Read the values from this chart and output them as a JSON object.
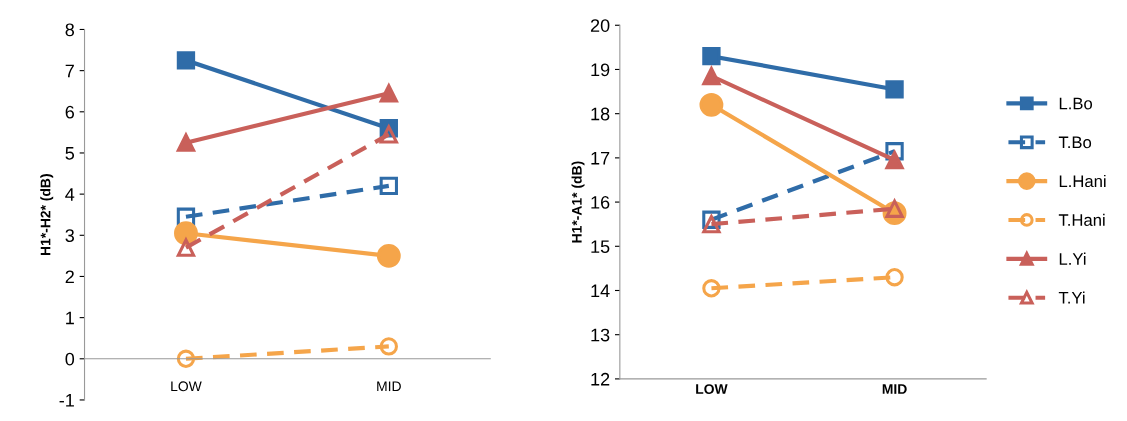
{
  "chart_data": [
    {
      "type": "line",
      "ylabel": "H1*-H2* (dB)",
      "categories": [
        "LOW",
        "MID"
      ],
      "ylim": [
        -1,
        8
      ],
      "yticks": [
        -1,
        0,
        1,
        2,
        3,
        4,
        5,
        6,
        7,
        8
      ],
      "grid": false,
      "legend": false,
      "series": [
        {
          "color": "#2f6ca8",
          "marker": "square",
          "line_style": "solid",
          "values": [
            7.25,
            5.6
          ]
        },
        {
          "color": "#2f6ca8",
          "marker": "square",
          "line_style": "dashed",
          "values": [
            3.45,
            4.2
          ]
        },
        {
          "color": "#f5a54a",
          "marker": "circle",
          "line_style": "solid",
          "values": [
            3.05,
            2.5
          ]
        },
        {
          "color": "#f5a54a",
          "marker": "circle",
          "line_style": "dashed",
          "values": [
            0,
            0.3
          ]
        },
        {
          "color": "#c9605a",
          "marker": "triangle",
          "line_style": "solid",
          "values": [
            5.25,
            6.45
          ]
        },
        {
          "color": "#c9605a",
          "marker": "triangle",
          "line_style": "dashed",
          "values": [
            2.7,
            5.45
          ]
        }
      ]
    },
    {
      "type": "line",
      "ylabel": "H1*-A1* (dB)",
      "categories": [
        "LOW",
        "MID"
      ],
      "ylim": [
        12,
        20
      ],
      "yticks": [
        12,
        13,
        14,
        15,
        16,
        17,
        18,
        19,
        20
      ],
      "grid": false,
      "legend": "right",
      "series": [
        {
          "name": "L.Bo",
          "color": "#2f6ca8",
          "marker": "square",
          "line_style": "solid",
          "values": [
            19.3,
            18.55
          ]
        },
        {
          "name": "T.Bo",
          "color": "#2f6ca8",
          "marker": "square",
          "line_style": "dashed",
          "values": [
            15.6,
            17.15
          ]
        },
        {
          "name": "L.Hani",
          "color": "#f5a54a",
          "marker": "circle",
          "line_style": "solid",
          "values": [
            18.2,
            15.75
          ]
        },
        {
          "name": "T.Hani",
          "color": "#f5a54a",
          "marker": "circle",
          "line_style": "dashed",
          "values": [
            14.05,
            14.3
          ]
        },
        {
          "name": "L.Yi",
          "color": "#c9605a",
          "marker": "triangle",
          "line_style": "solid",
          "values": [
            18.85,
            16.95
          ]
        },
        {
          "name": "T.Yi",
          "color": "#c9605a",
          "marker": "triangle",
          "line_style": "dashed",
          "values": [
            15.5,
            15.85
          ]
        }
      ]
    }
  ]
}
